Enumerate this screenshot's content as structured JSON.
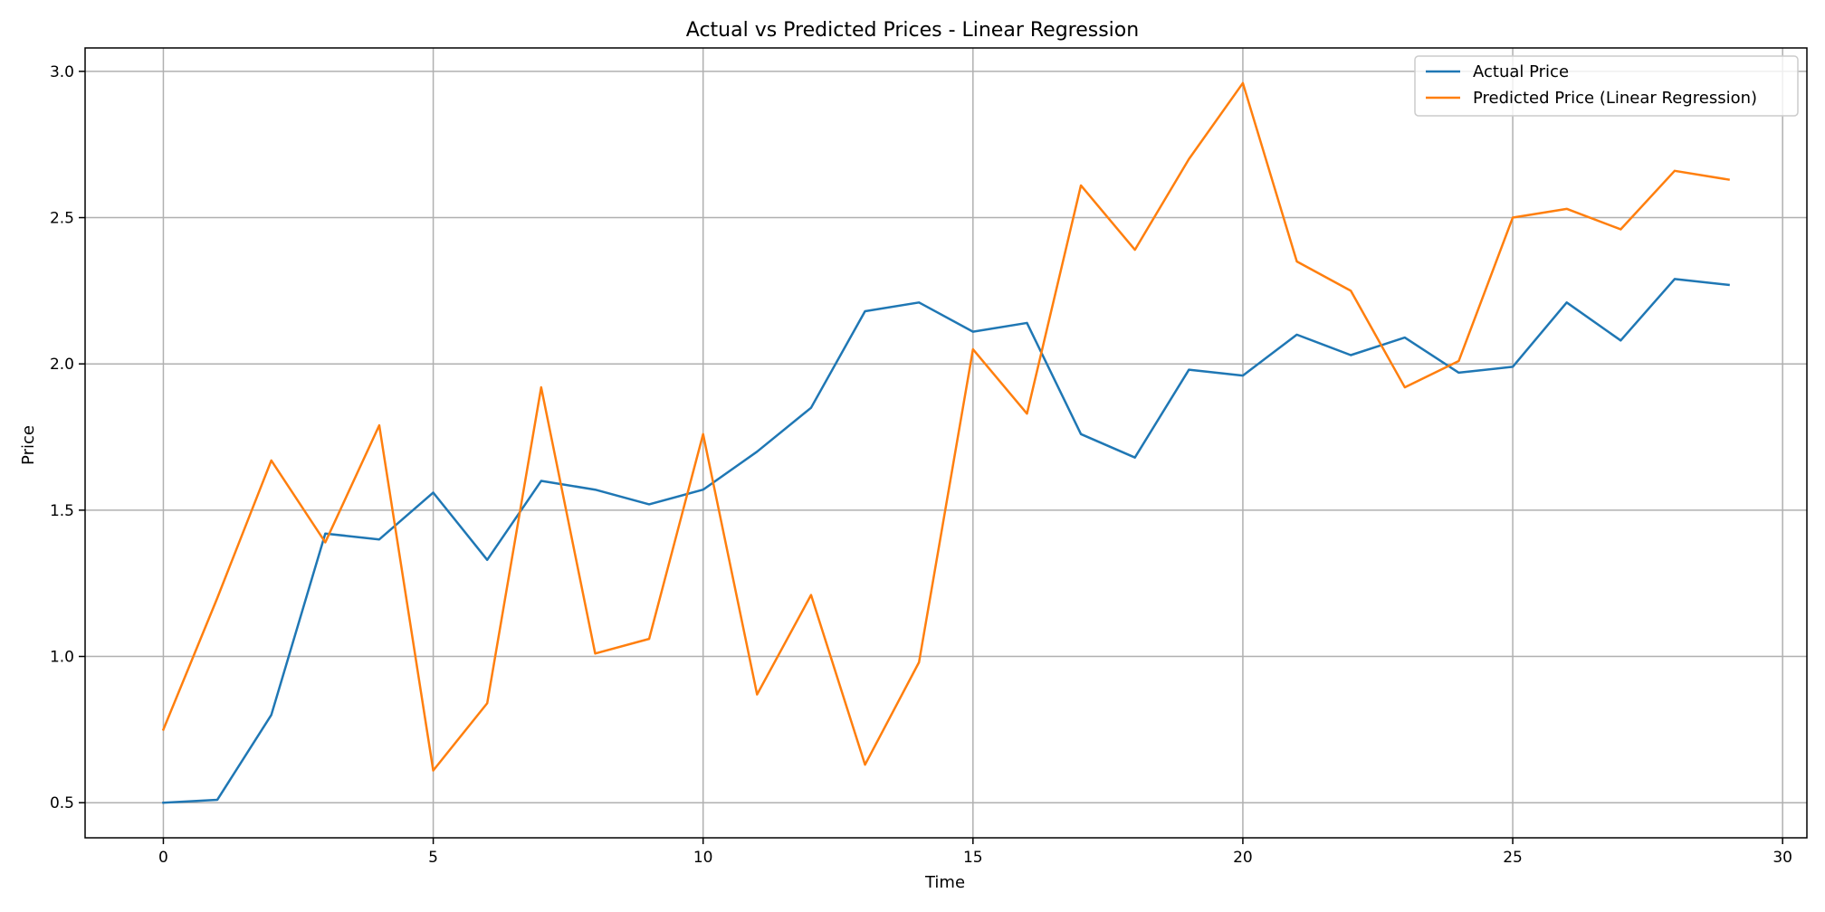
{
  "chart_data": {
    "type": "line",
    "title": "Actual vs Predicted Prices - Linear Regression",
    "xlabel": "Time",
    "ylabel": "Price",
    "xlim": [
      -1.45,
      30.45
    ],
    "ylim": [
      0.38,
      3.08
    ],
    "xticks": [
      0,
      5,
      10,
      15,
      20,
      25,
      30
    ],
    "xtick_labels": [
      "0",
      "5",
      "10",
      "15",
      "20",
      "25",
      "30"
    ],
    "yticks": [
      0.5,
      1.0,
      1.5,
      2.0,
      2.5,
      3.0
    ],
    "ytick_labels": [
      "0.5",
      "1.0",
      "1.5",
      "2.0",
      "2.5",
      "3.0"
    ],
    "grid": true,
    "legend_position": "top-right",
    "x": [
      0,
      1,
      2,
      3,
      4,
      5,
      6,
      7,
      8,
      9,
      10,
      11,
      12,
      13,
      14,
      15,
      16,
      17,
      18,
      19,
      20,
      21,
      22,
      23,
      24,
      25,
      26,
      27,
      28,
      29
    ],
    "series": [
      {
        "name": "Actual Price",
        "color": "#1f77b4",
        "values": [
          0.5,
          0.51,
          0.8,
          1.42,
          1.4,
          1.56,
          1.33,
          1.6,
          1.57,
          1.52,
          1.57,
          1.7,
          1.85,
          2.18,
          2.21,
          2.11,
          2.14,
          1.76,
          1.68,
          1.98,
          1.96,
          2.1,
          2.03,
          2.09,
          1.97,
          1.99,
          2.21,
          2.08,
          2.29,
          2.27
        ]
      },
      {
        "name": "Predicted Price (Linear Regression)",
        "color": "#ff7f0e",
        "values": [
          0.75,
          1.2,
          1.67,
          1.39,
          1.79,
          0.61,
          0.84,
          1.92,
          1.01,
          1.06,
          1.76,
          0.87,
          1.21,
          0.63,
          0.98,
          2.05,
          1.83,
          2.61,
          2.39,
          2.7,
          2.96,
          2.35,
          2.25,
          1.92,
          2.01,
          2.5,
          2.53,
          2.46,
          2.66,
          2.63
        ]
      }
    ]
  }
}
